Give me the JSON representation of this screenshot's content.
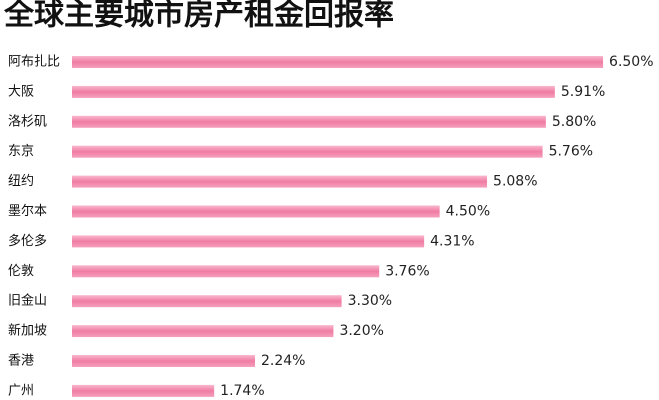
{
  "chart_data": {
    "type": "bar",
    "orientation": "horizontal",
    "title": "全球主要城市房产租金回报率",
    "categories": [
      "阿布扎比",
      "大阪",
      "洛杉矶",
      "东京",
      "纽约",
      "墨尔本",
      "多伦多",
      "伦敦",
      "旧金山",
      "新加坡",
      "香港",
      "广州"
    ],
    "values": [
      6.5,
      5.91,
      5.8,
      5.76,
      5.08,
      4.5,
      4.31,
      3.76,
      3.3,
      3.2,
      2.24,
      1.74
    ],
    "value_labels": [
      "6.50%",
      "5.91%",
      "5.80%",
      "5.76%",
      "5.08%",
      "4.50%",
      "4.31%",
      "3.76%",
      "3.30%",
      "3.20%",
      "2.24%",
      "1.74%"
    ],
    "color": "#f07ca3"
  }
}
